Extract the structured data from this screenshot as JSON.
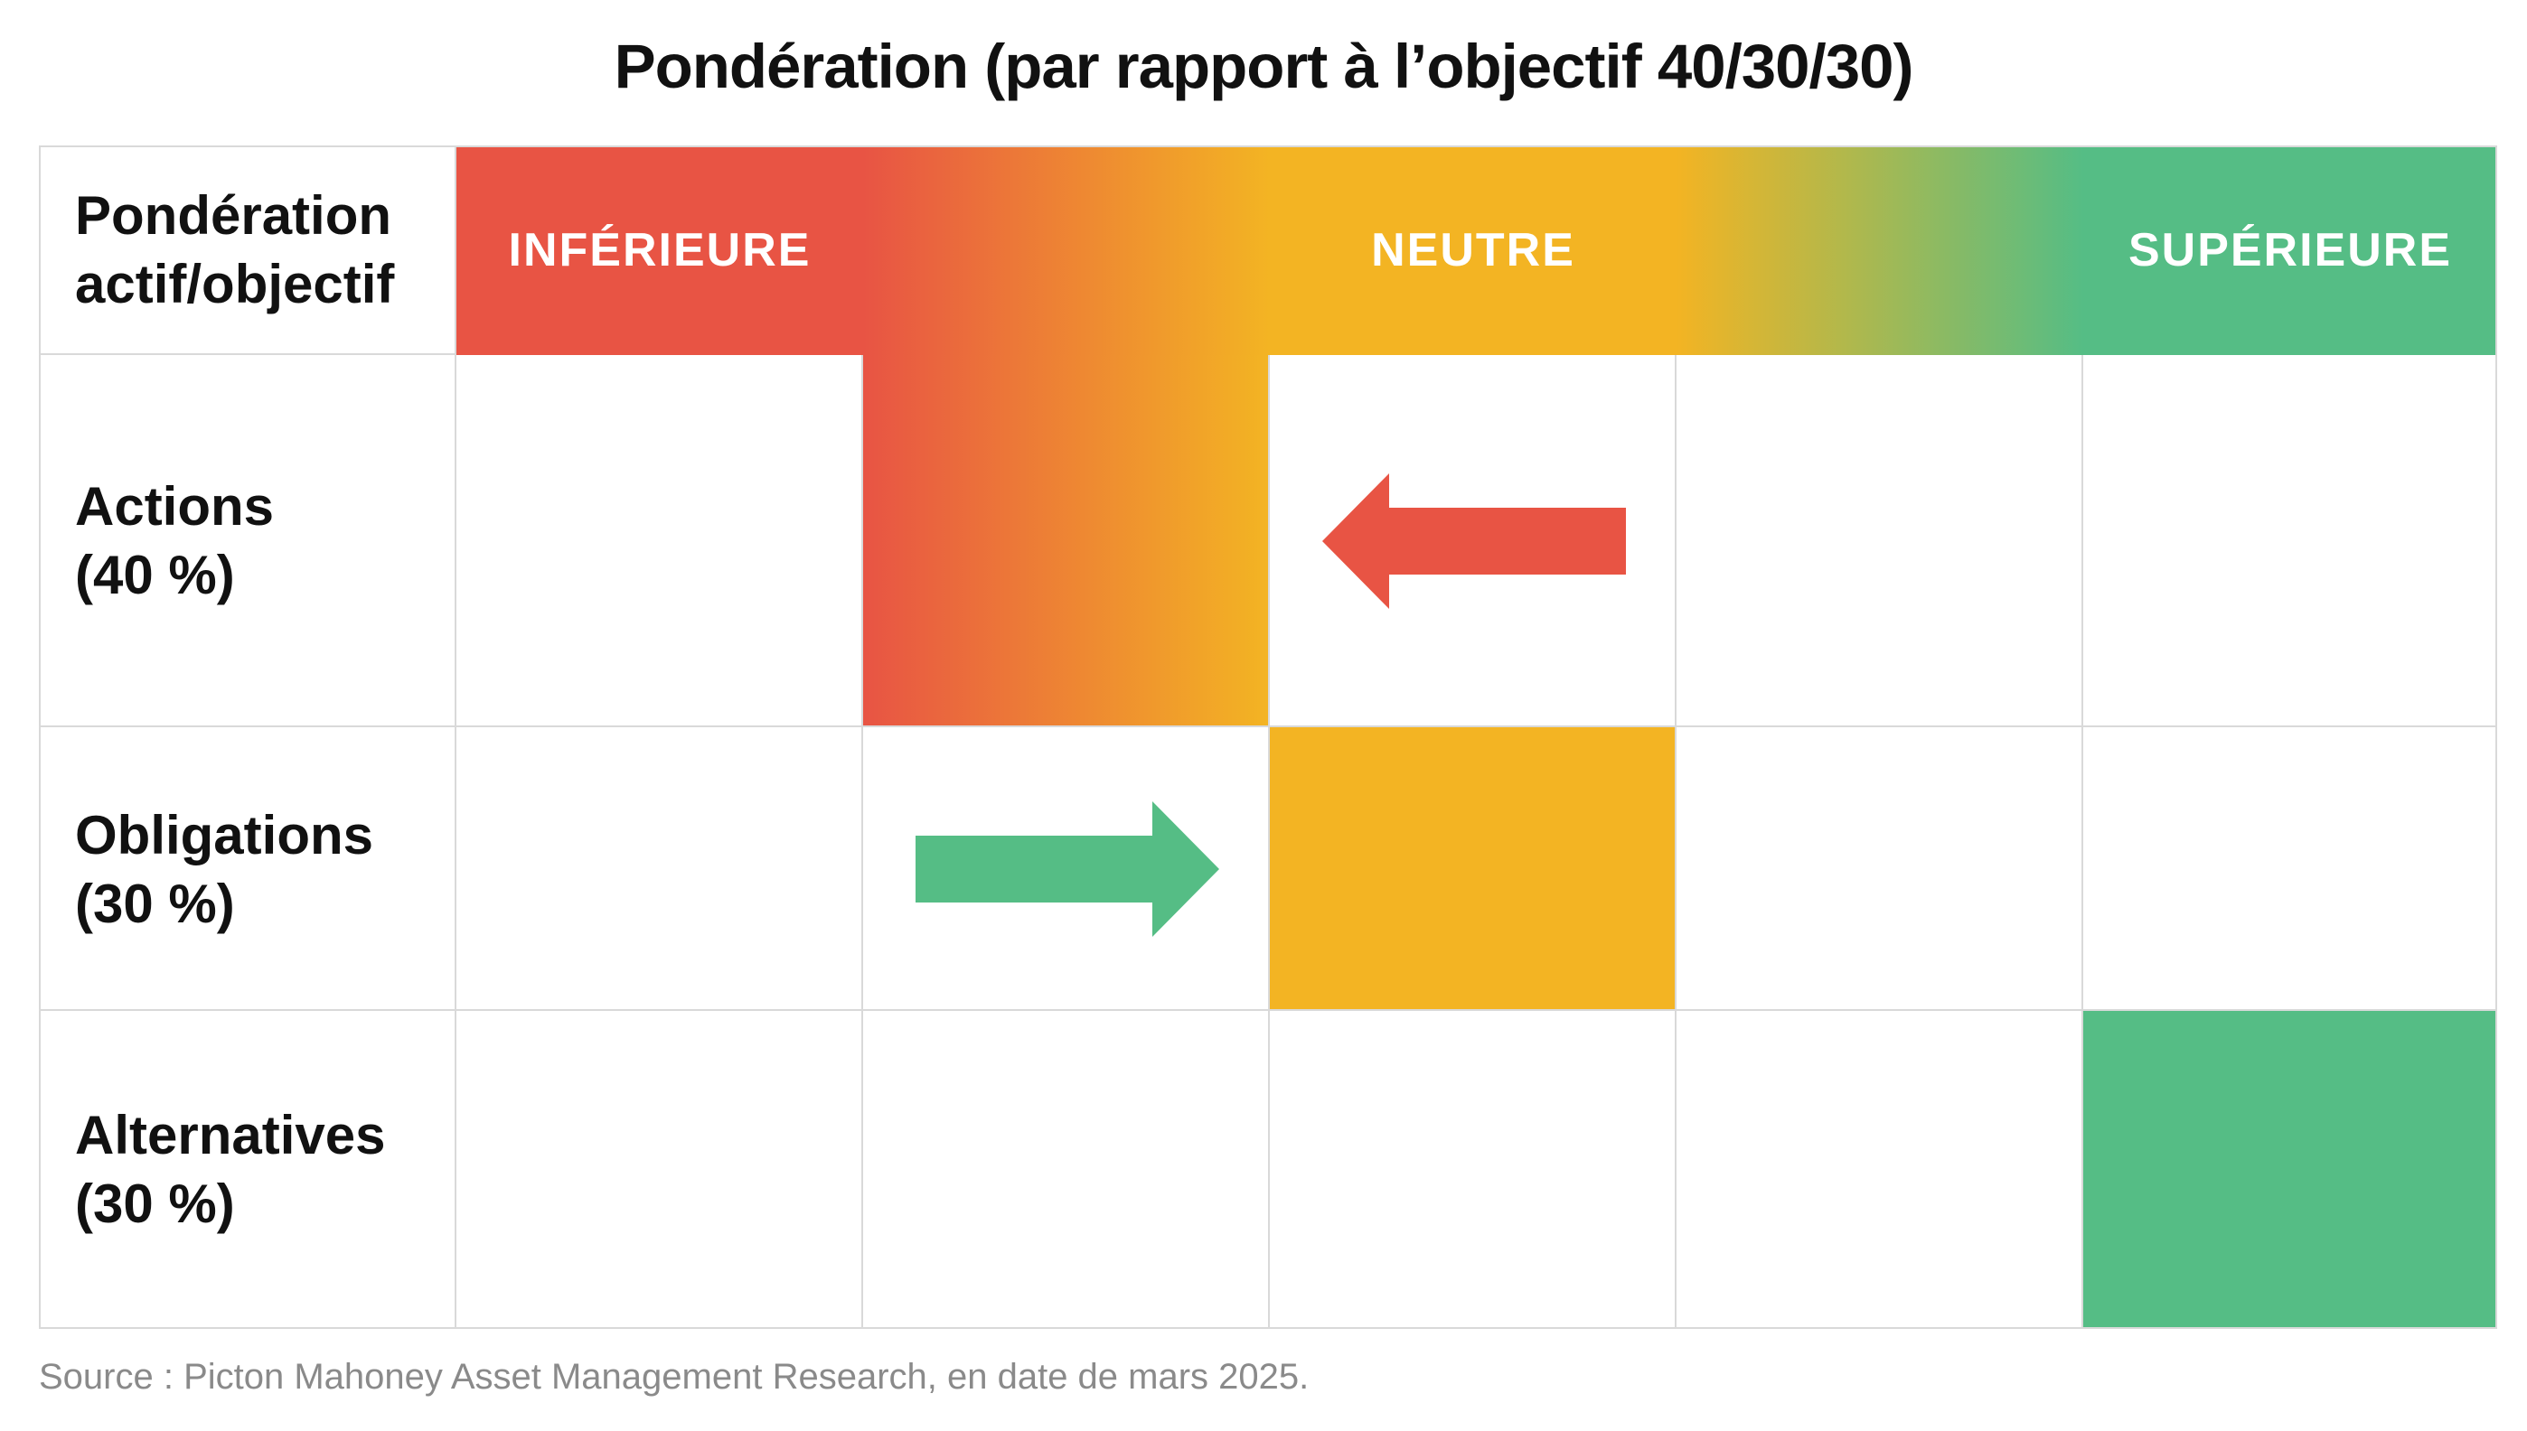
{
  "chart_data": {
    "type": "table",
    "title": "Pondération (par rapport à l’objectif 40/30/30)",
    "header_label_line1": "Pondération",
    "header_label_line2": "actif/objectif",
    "scale": [
      {
        "label": "INFÉRIEURE",
        "color": "#e85444"
      },
      {
        "label": "",
        "gradient": [
          "#e85444",
          "#f3b423"
        ]
      },
      {
        "label": "NEUTRE",
        "color": "#f3b423"
      },
      {
        "label": "",
        "gradient": [
          "#f3b423",
          "#55bd85"
        ]
      },
      {
        "label": "SUPÉRIEURE",
        "color": "#55bd85"
      }
    ],
    "rows": [
      {
        "name": "Actions",
        "target": "(40 %)",
        "position_index": 1,
        "arrow": "left",
        "arrow_from_index": 2,
        "arrow_color": "#e85444"
      },
      {
        "name": "Obligations",
        "target": "(30 %)",
        "position_index": 2,
        "arrow": "right",
        "arrow_from_index": 1,
        "arrow_color": "#55bd85"
      },
      {
        "name": "Alternatives",
        "target": "(30 %)",
        "position_index": 4,
        "arrow": "none"
      }
    ],
    "source": "Source : Picton Mahoney Asset Management Research, en date de mars 2025."
  },
  "colors": {
    "red": "#e85444",
    "yellow": "#f3b423",
    "green": "#55bd85",
    "grid": "#d9d9d9",
    "source_text": "#8a8a8a"
  }
}
